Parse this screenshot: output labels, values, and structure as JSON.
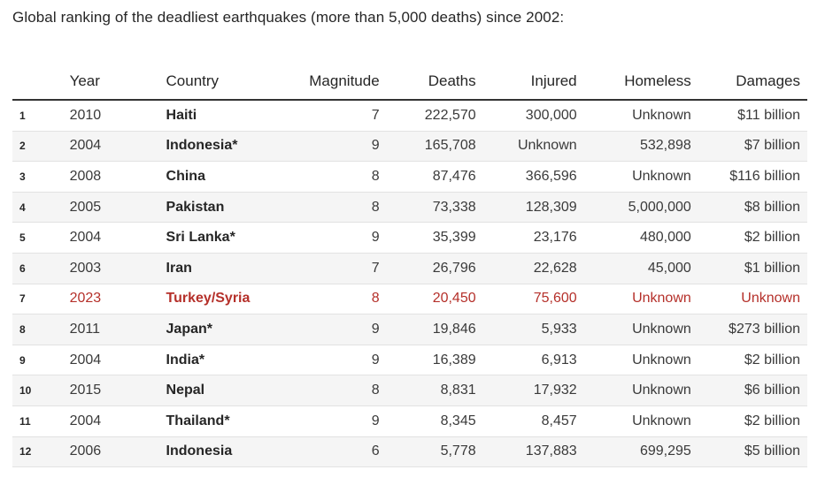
{
  "title": "Global ranking of the deadliest earthquakes (more than 5,000 deaths) since 2002:",
  "columns": {
    "rank": "",
    "year": "Year",
    "country": "Country",
    "magnitude": "Magnitude",
    "deaths": "Deaths",
    "injured": "Injured",
    "homeless": "Homeless",
    "damages": "Damages"
  },
  "highlight_color": "#b5302a",
  "rows": [
    {
      "rank": "1",
      "year": "2010",
      "country": "Haiti",
      "magnitude": "7",
      "deaths": "222,570",
      "injured": "300,000",
      "homeless": "Unknown",
      "damages": "$11 billion",
      "highlight": false
    },
    {
      "rank": "2",
      "year": "2004",
      "country": "Indonesia*",
      "magnitude": "9",
      "deaths": "165,708",
      "injured": "Unknown",
      "homeless": "532,898",
      "damages": "$7 billion",
      "highlight": false
    },
    {
      "rank": "3",
      "year": "2008",
      "country": "China",
      "magnitude": "8",
      "deaths": "87,476",
      "injured": "366,596",
      "homeless": "Unknown",
      "damages": "$116 billion",
      "highlight": false
    },
    {
      "rank": "4",
      "year": "2005",
      "country": "Pakistan",
      "magnitude": "8",
      "deaths": "73,338",
      "injured": "128,309",
      "homeless": "5,000,000",
      "damages": "$8 billion",
      "highlight": false
    },
    {
      "rank": "5",
      "year": "2004",
      "country": "Sri Lanka*",
      "magnitude": "9",
      "deaths": "35,399",
      "injured": "23,176",
      "homeless": "480,000",
      "damages": "$2 billion",
      "highlight": false
    },
    {
      "rank": "6",
      "year": "2003",
      "country": "Iran",
      "magnitude": "7",
      "deaths": "26,796",
      "injured": "22,628",
      "homeless": "45,000",
      "damages": "$1 billion",
      "highlight": false
    },
    {
      "rank": "7",
      "year": "2023",
      "country": "Turkey/Syria",
      "magnitude": "8",
      "deaths": "20,450",
      "injured": "75,600",
      "homeless": "Unknown",
      "damages": "Unknown",
      "highlight": true
    },
    {
      "rank": "8",
      "year": "2011",
      "country": "Japan*",
      "magnitude": "9",
      "deaths": "19,846",
      "injured": "5,933",
      "homeless": "Unknown",
      "damages": "$273 billion",
      "highlight": false
    },
    {
      "rank": "9",
      "year": "2004",
      "country": "India*",
      "magnitude": "9",
      "deaths": "16,389",
      "injured": "6,913",
      "homeless": "Unknown",
      "damages": "$2 billion",
      "highlight": false
    },
    {
      "rank": "10",
      "year": "2015",
      "country": "Nepal",
      "magnitude": "8",
      "deaths": "8,831",
      "injured": "17,932",
      "homeless": "Unknown",
      "damages": "$6 billion",
      "highlight": false
    },
    {
      "rank": "11",
      "year": "2004",
      "country": "Thailand*",
      "magnitude": "9",
      "deaths": "8,345",
      "injured": "8,457",
      "homeless": "Unknown",
      "damages": "$2 billion",
      "highlight": false
    },
    {
      "rank": "12",
      "year": "2006",
      "country": "Indonesia",
      "magnitude": "6",
      "deaths": "5,778",
      "injured": "137,883",
      "homeless": "699,295",
      "damages": "$5 billion",
      "highlight": false
    }
  ]
}
